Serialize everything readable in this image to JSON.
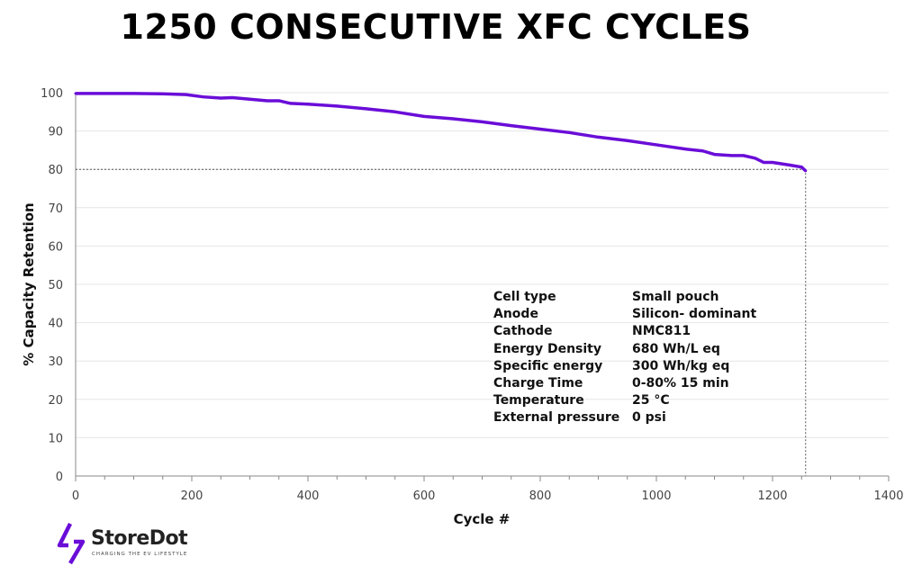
{
  "chart_data": {
    "type": "line",
    "title": "1250 CONSECUTIVE XFC CYCLES",
    "xlabel": "Cycle #",
    "ylabel": "% Capacity Retention",
    "xlim": [
      0,
      1400
    ],
    "ylim": [
      0,
      100
    ],
    "xticks": [
      0,
      200,
      400,
      600,
      800,
      1000,
      1200,
      1400
    ],
    "yticks": [
      0,
      10,
      20,
      30,
      40,
      50,
      60,
      70,
      80,
      90,
      100
    ],
    "grid": "horizontal",
    "line_color": "#6a0dd8",
    "series": [
      {
        "x": [
          0,
          50,
          100,
          150,
          190,
          220,
          250,
          270,
          300,
          330,
          350,
          370,
          400,
          450,
          500,
          550,
          600,
          650,
          700,
          750,
          800,
          850,
          900,
          950,
          1000,
          1050,
          1080,
          1100,
          1130,
          1150,
          1170,
          1185,
          1200,
          1230,
          1250,
          1257
        ],
        "y": [
          99.8,
          99.8,
          99.8,
          99.7,
          99.5,
          98.9,
          98.6,
          98.7,
          98.3,
          97.9,
          97.9,
          97.2,
          97.0,
          96.5,
          95.8,
          95.0,
          93.8,
          93.2,
          92.4,
          91.4,
          90.5,
          89.6,
          88.4,
          87.5,
          86.4,
          85.3,
          84.8,
          83.9,
          83.6,
          83.6,
          82.9,
          81.8,
          81.8,
          81.1,
          80.6,
          79.6
        ]
      }
    ],
    "reference_lines": {
      "y": 80,
      "x": 1257
    }
  },
  "specs": [
    {
      "label": "Cell type",
      "value": "Small pouch"
    },
    {
      "label": "Anode",
      "value": "Silicon- dominant"
    },
    {
      "label": "Cathode",
      "value": "NMC811"
    },
    {
      "label": "Energy Density",
      "value": "680 Wh/L eq"
    },
    {
      "label": "Specific energy",
      "value": "300 Wh/kg eq"
    },
    {
      "label": "Charge Time",
      "value": "0-80% 15 min"
    },
    {
      "label": "Temperature",
      "value": "25 °C"
    },
    {
      "label": "External pressure",
      "value": "0 psi"
    }
  ],
  "logo": {
    "name": "StoreDot",
    "tagline": "CHARGING THE EV LIFESTYLE",
    "color": "#6a0dd8"
  }
}
